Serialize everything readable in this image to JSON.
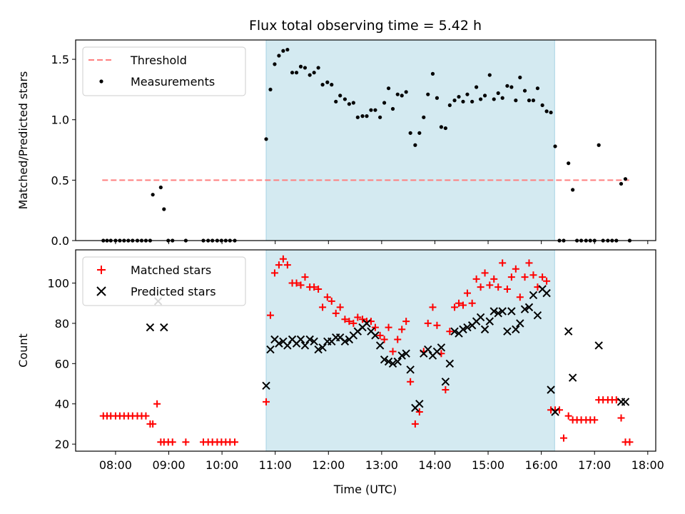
{
  "figure": {
    "title": "Flux total observing time = 5.42 h",
    "xlabel": "Time (UTC)"
  },
  "colors": {
    "threshold": "#ff7f7f",
    "measurements": "#000000",
    "matched": "#ff0000",
    "predicted": "#000000",
    "window_fill": "#d4eaf1",
    "window_edge": "#a8d4e4"
  },
  "chart_data": [
    {
      "type": "scatter",
      "panel": "top",
      "ylabel": "Matched/Predicted stars",
      "xlim": [
        7.25,
        18.15
      ],
      "ylim": [
        0,
        1.66
      ],
      "xticks": [
        "08:00",
        "09:00",
        "10:00",
        "11:00",
        "12:00",
        "13:00",
        "14:00",
        "15:00",
        "16:00",
        "17:00",
        "18:00"
      ],
      "yticks": [
        "0.0",
        "0.5",
        "1.0",
        "1.5"
      ],
      "legend": {
        "placement": "upper-left",
        "entries": [
          "Threshold",
          "Measurements"
        ]
      },
      "shaded_window": [
        10.83,
        16.25
      ],
      "threshold": {
        "name": "Threshold",
        "y": 0.5,
        "x": [
          7.75,
          17.65
        ]
      },
      "series": [
        {
          "name": "Measurements",
          "x": [
            7.77,
            7.84,
            7.91,
            8.0,
            8.08,
            8.16,
            8.24,
            8.32,
            8.41,
            8.49,
            8.57,
            8.65,
            8.7,
            8.85,
            8.91,
            8.99,
            9.07,
            9.32,
            9.65,
            9.74,
            9.82,
            9.91,
            9.99,
            10.07,
            10.15,
            10.24,
            10.83,
            10.91,
            10.99,
            11.07,
            11.15,
            11.23,
            11.32,
            11.4,
            11.48,
            11.56,
            11.65,
            11.73,
            11.81,
            11.89,
            11.98,
            12.06,
            12.14,
            12.22,
            12.31,
            12.39,
            12.47,
            12.55,
            12.64,
            12.72,
            12.8,
            12.88,
            12.97,
            13.05,
            13.13,
            13.21,
            13.3,
            13.38,
            13.46,
            13.54,
            13.63,
            13.71,
            13.79,
            13.87,
            13.96,
            14.04,
            14.12,
            14.2,
            14.28,
            14.37,
            14.45,
            14.53,
            14.61,
            14.7,
            14.78,
            14.86,
            14.94,
            15.03,
            15.11,
            15.19,
            15.27,
            15.36,
            15.44,
            15.52,
            15.6,
            15.69,
            15.77,
            15.85,
            15.93,
            16.02,
            16.1,
            16.18,
            16.26,
            16.34,
            16.42,
            16.51,
            16.59,
            16.67,
            16.75,
            16.84,
            16.92,
            17.0,
            17.08,
            17.16,
            17.25,
            17.33,
            17.41,
            17.5,
            17.58,
            17.66
          ],
          "y": [
            0,
            0,
            0,
            0,
            0,
            0,
            0,
            0,
            0,
            0,
            0,
            0,
            0.38,
            0.44,
            0.26,
            0,
            0,
            0,
            0,
            0,
            0,
            0,
            0,
            0,
            0,
            0,
            0.84,
            1.25,
            1.46,
            1.53,
            1.57,
            1.58,
            1.39,
            1.39,
            1.44,
            1.43,
            1.37,
            1.39,
            1.43,
            1.29,
            1.31,
            1.29,
            1.15,
            1.2,
            1.17,
            1.13,
            1.14,
            1.02,
            1.03,
            1.03,
            1.08,
            1.08,
            1.02,
            1.14,
            1.26,
            1.09,
            1.21,
            1.2,
            1.23,
            0.89,
            0.79,
            0.89,
            1.02,
            1.21,
            1.38,
            1.18,
            0.94,
            0.93,
            1.12,
            1.16,
            1.19,
            1.15,
            1.21,
            1.15,
            1.27,
            1.17,
            1.2,
            1.37,
            1.17,
            1.22,
            1.18,
            1.28,
            1.27,
            1.16,
            1.35,
            1.24,
            1.16,
            1.16,
            1.26,
            1.12,
            1.07,
            1.06,
            0.78,
            0,
            0,
            0.64,
            0.42,
            0,
            0,
            0,
            0,
            0,
            0.79,
            0,
            0,
            0,
            0,
            0.47,
            0.51,
            0
          ]
        }
      ]
    },
    {
      "type": "scatter",
      "panel": "bottom",
      "ylabel": "Count",
      "xlabel": "Time (UTC)",
      "xlim": [
        7.25,
        18.15
      ],
      "ylim": [
        16.5,
        116.5
      ],
      "xticks": [
        "08:00",
        "09:00",
        "10:00",
        "11:00",
        "12:00",
        "13:00",
        "14:00",
        "15:00",
        "16:00",
        "17:00",
        "18:00"
      ],
      "yticks": [
        "20",
        "40",
        "60",
        "80",
        "100"
      ],
      "legend": {
        "placement": "upper-left",
        "entries": [
          "Matched stars",
          "Predicted stars"
        ]
      },
      "shaded_window": [
        10.83,
        16.25
      ],
      "series": [
        {
          "name": "Matched stars",
          "marker": "plus",
          "x": [
            7.77,
            7.84,
            7.91,
            8.0,
            8.08,
            8.16,
            8.24,
            8.32,
            8.41,
            8.49,
            8.57,
            8.65,
            8.7,
            8.78,
            8.85,
            8.91,
            8.99,
            9.07,
            9.32,
            9.65,
            9.74,
            9.82,
            9.91,
            9.99,
            10.07,
            10.15,
            10.24,
            10.83,
            10.91,
            10.99,
            11.07,
            11.15,
            11.23,
            11.32,
            11.4,
            11.48,
            11.56,
            11.65,
            11.73,
            11.81,
            11.89,
            11.98,
            12.06,
            12.14,
            12.22,
            12.31,
            12.39,
            12.47,
            12.55,
            12.64,
            12.72,
            12.8,
            12.88,
            12.97,
            13.05,
            13.13,
            13.21,
            13.3,
            13.38,
            13.46,
            13.54,
            13.63,
            13.71,
            13.79,
            13.87,
            13.96,
            14.04,
            14.12,
            14.2,
            14.28,
            14.37,
            14.45,
            14.53,
            14.61,
            14.7,
            14.78,
            14.86,
            14.94,
            15.03,
            15.11,
            15.19,
            15.27,
            15.36,
            15.44,
            15.52,
            15.6,
            15.69,
            15.77,
            15.85,
            15.93,
            16.02,
            16.1,
            16.18,
            16.26,
            16.34,
            16.42,
            16.51,
            16.59,
            16.67,
            16.75,
            16.84,
            16.92,
            17.0,
            17.08,
            17.16,
            17.25,
            17.33,
            17.41,
            17.5,
            17.58,
            17.66
          ],
          "y": [
            34,
            34,
            34,
            34,
            34,
            34,
            34,
            34,
            34,
            34,
            34,
            30,
            30,
            40,
            21,
            21,
            21,
            21,
            21,
            21,
            21,
            21,
            21,
            21,
            21,
            21,
            21,
            41,
            84,
            105,
            109,
            112,
            109,
            100,
            100,
            99,
            103,
            98,
            98,
            97,
            88,
            93,
            91,
            85,
            88,
            82,
            81,
            80,
            83,
            82,
            81,
            81,
            78,
            74,
            72,
            78,
            66,
            72,
            77,
            81,
            51,
            30,
            36,
            66,
            80,
            88,
            79,
            65,
            47,
            76,
            88,
            90,
            89,
            95,
            90,
            102,
            98,
            105,
            99,
            102,
            98,
            110,
            97,
            103,
            107,
            93,
            103,
            110,
            104,
            98,
            103,
            101,
            37,
            37,
            37,
            23,
            34,
            32,
            32,
            32,
            32,
            32,
            32,
            42,
            42,
            42,
            42,
            42,
            33,
            21,
            21
          ]
        },
        {
          "name": "Predicted stars",
          "marker": "x",
          "x": [
            8.65,
            8.8,
            8.91,
            10.83,
            10.91,
            10.99,
            11.07,
            11.15,
            11.23,
            11.32,
            11.4,
            11.48,
            11.56,
            11.65,
            11.73,
            11.81,
            11.89,
            11.98,
            12.06,
            12.14,
            12.22,
            12.31,
            12.39,
            12.47,
            12.55,
            12.64,
            12.72,
            12.8,
            12.88,
            12.97,
            13.05,
            13.13,
            13.21,
            13.3,
            13.38,
            13.46,
            13.54,
            13.63,
            13.71,
            13.79,
            13.87,
            13.96,
            14.04,
            14.12,
            14.2,
            14.28,
            14.37,
            14.45,
            14.53,
            14.61,
            14.7,
            14.78,
            14.86,
            14.94,
            15.03,
            15.11,
            15.19,
            15.27,
            15.36,
            15.44,
            15.52,
            15.6,
            15.69,
            15.77,
            15.85,
            15.93,
            16.02,
            16.1,
            16.18,
            16.26,
            16.51,
            16.59,
            17.08,
            17.5,
            17.58
          ],
          "y": [
            78,
            91,
            78,
            49,
            67,
            72,
            70,
            71,
            69,
            72,
            70,
            72,
            69,
            72,
            71,
            67,
            68,
            71,
            71,
            73,
            73,
            71,
            72,
            74,
            76,
            78,
            80,
            76,
            74,
            69,
            62,
            61,
            60,
            61,
            64,
            65,
            57,
            38,
            40,
            65,
            67,
            64,
            66,
            68,
            51,
            60,
            76,
            75,
            77,
            78,
            79,
            81,
            83,
            77,
            81,
            86,
            85,
            86,
            76,
            86,
            77,
            80,
            87,
            88,
            94,
            84,
            97,
            95,
            47,
            36,
            76,
            53,
            69,
            41,
            41
          ]
        }
      ]
    }
  ]
}
